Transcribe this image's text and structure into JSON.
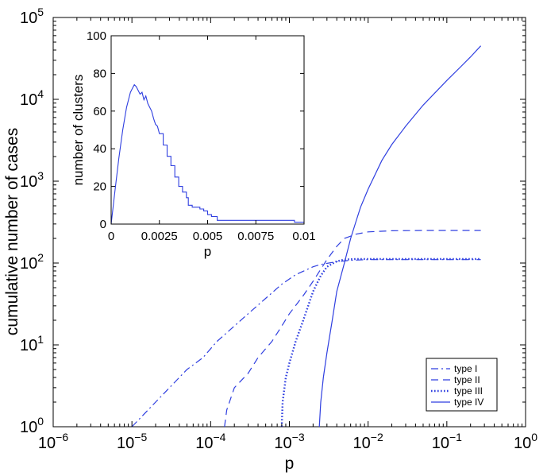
{
  "chart_data": [
    {
      "type": "line",
      "xlabel": "p",
      "ylabel": "cumulative number of cases",
      "xscale": "log",
      "yscale": "log",
      "xlim": [
        1e-06,
        1
      ],
      "ylim": [
        1,
        100000
      ],
      "xticks": [
        {
          "base": "10",
          "exp": "−6",
          "value": 1e-06
        },
        {
          "base": "10",
          "exp": "−5",
          "value": 1e-05
        },
        {
          "base": "10",
          "exp": "−4",
          "value": 0.0001
        },
        {
          "base": "10",
          "exp": "−3",
          "value": 0.001
        },
        {
          "base": "10",
          "exp": "−2",
          "value": 0.01
        },
        {
          "base": "10",
          "exp": "−1",
          "value": 0.1
        },
        {
          "base": "10",
          "exp": "0",
          "value": 1
        }
      ],
      "yticks": [
        {
          "base": "10",
          "exp": "0",
          "value": 1
        },
        {
          "base": "10",
          "exp": "1",
          "value": 10
        },
        {
          "base": "10",
          "exp": "2",
          "value": 100
        },
        {
          "base": "10",
          "exp": "3",
          "value": 1000
        },
        {
          "base": "10",
          "exp": "4",
          "value": 10000
        },
        {
          "base": "10",
          "exp": "5",
          "value": 100000
        }
      ],
      "grid": false,
      "legend_position": "bottom-right",
      "color": "#2f3fe0",
      "series": [
        {
          "name": "type I",
          "dash": "dash-dot",
          "x": [
            1e-05,
            1.5e-05,
            2e-05,
            3e-05,
            5e-05,
            8e-05,
            0.00012,
            0.0002,
            0.0003,
            0.0005,
            0.0008,
            0.0012,
            0.002,
            0.0025,
            0.004,
            0.006,
            0.01,
            0.03,
            0.1,
            0.27
          ],
          "y": [
            1,
            1.5,
            2,
            3,
            5,
            7,
            11,
            17,
            24,
            37,
            55,
            72,
            90,
            96,
            104,
            108,
            110,
            110,
            110,
            110
          ]
        },
        {
          "name": "type II",
          "dash": "dashed",
          "x": [
            0.00015,
            0.00016,
            0.0002,
            0.0003,
            0.0004,
            0.0006,
            0.0008,
            0.001,
            0.0015,
            0.002,
            0.003,
            0.004,
            0.005,
            0.007,
            0.01,
            0.02,
            0.05,
            0.1,
            0.27
          ],
          "y": [
            1,
            1.6,
            3,
            4.5,
            7,
            11,
            17,
            24,
            40,
            60,
            110,
            160,
            200,
            225,
            240,
            248,
            250,
            250,
            250
          ]
        },
        {
          "name": "type III",
          "dash": "dotted",
          "x": [
            0.0008,
            0.00082,
            0.0009,
            0.001,
            0.0012,
            0.0015,
            0.002,
            0.0025,
            0.003,
            0.004,
            0.005,
            0.007,
            0.01,
            0.03,
            0.1,
            0.27
          ],
          "y": [
            1,
            2,
            4,
            6,
            11,
            20,
            45,
            70,
            90,
            105,
            110,
            112,
            112,
            112,
            112,
            112
          ]
        },
        {
          "name": "type IV",
          "dash": "solid",
          "x": [
            0.0024,
            0.0025,
            0.0027,
            0.003,
            0.0035,
            0.004,
            0.005,
            0.006,
            0.007,
            0.008,
            0.01,
            0.015,
            0.02,
            0.03,
            0.05,
            0.1,
            0.15,
            0.2,
            0.27
          ],
          "y": [
            1,
            2,
            4,
            8,
            20,
            45,
            100,
            200,
            320,
            480,
            800,
            1800,
            2800,
            4700,
            8500,
            17000,
            25000,
            33000,
            45000
          ]
        }
      ]
    },
    {
      "type": "line",
      "xlabel": "p",
      "ylabel": "number of clusters",
      "xlim": [
        0,
        0.01
      ],
      "ylim": [
        0,
        100
      ],
      "xticks": [
        "0",
        "0.0025",
        "0.005",
        "0.0075",
        "0.01"
      ],
      "yticks": [
        "0",
        "20",
        "40",
        "60",
        "80",
        "100"
      ],
      "grid": false,
      "color": "#2f3fe0",
      "series": [
        {
          "x": [
            0,
            0.0002,
            0.0004,
            0.0006,
            0.0008,
            0.001,
            0.0011,
            0.0012,
            0.0013,
            0.0014,
            0.0015,
            0.0016,
            0.0017,
            0.0018,
            0.0019,
            0.002,
            0.0021,
            0.0022,
            0.0023,
            0.0024,
            0.0025,
            0.0027,
            0.0029,
            0.0031,
            0.0033,
            0.0035,
            0.0037,
            0.0039,
            0.004,
            0.0042,
            0.0044,
            0.0046,
            0.0048,
            0.005,
            0.0052,
            0.0055,
            0.006,
            0.007,
            0.0075,
            0.008,
            0.009,
            0.0095,
            0.01
          ],
          "y": [
            0,
            18,
            35,
            50,
            62,
            70,
            72,
            74,
            73,
            71,
            69,
            70,
            66,
            68,
            64,
            62,
            60,
            56,
            53,
            52,
            48,
            42,
            36,
            31,
            25,
            20,
            17,
            14,
            10,
            9,
            9,
            8,
            7,
            5,
            4,
            2,
            2,
            2,
            2,
            2,
            2,
            1,
            1
          ]
        }
      ]
    }
  ]
}
